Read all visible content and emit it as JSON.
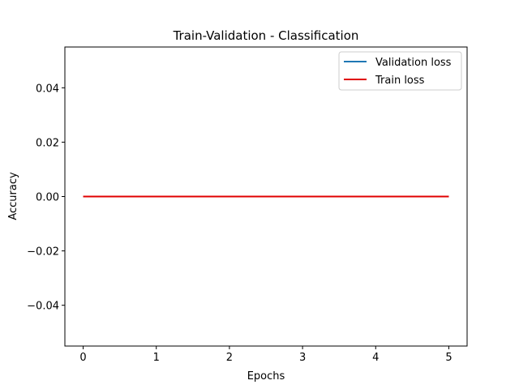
{
  "chart_data": {
    "type": "line",
    "title": "Train-Validation - Classification",
    "xlabel": "Epochs",
    "ylabel": "Accuracy",
    "xlim": [
      -0.25,
      5.25
    ],
    "ylim": [
      -0.055,
      0.055
    ],
    "x_ticks": [
      0,
      1,
      2,
      3,
      4,
      5
    ],
    "x_tick_labels": [
      "0",
      "1",
      "2",
      "3",
      "4",
      "5"
    ],
    "y_ticks": [
      -0.04,
      -0.02,
      0.0,
      0.02,
      0.04
    ],
    "y_tick_labels": [
      "−0.04",
      "−0.02",
      "0.00",
      "0.02",
      "0.04"
    ],
    "grid": false,
    "legend_position": "top-right",
    "x": [
      0,
      1,
      2,
      3,
      4,
      5
    ],
    "series": [
      {
        "name": "Validation loss",
        "values": [
          0,
          0,
          0,
          0,
          0,
          0
        ],
        "color": "#1f77b4"
      },
      {
        "name": "Train loss",
        "values": [
          0,
          0,
          0,
          0,
          0,
          0
        ],
        "color": "#e00000"
      }
    ]
  }
}
